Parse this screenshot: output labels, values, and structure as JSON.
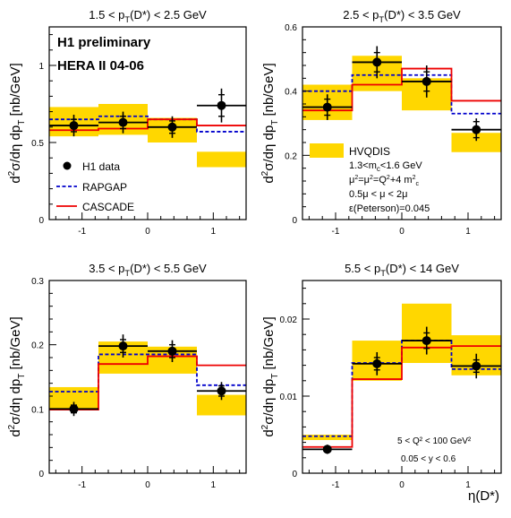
{
  "figure": {
    "colors": {
      "data": "#000000",
      "rapgap": "#0000cc",
      "cascade": "#ee0000",
      "hvqdis": "#ffd700"
    }
  },
  "chart_data": [
    {
      "type": "step-histogram-with-errorbars",
      "title": "1.5 < p_T(D*) < 2.5 GeV",
      "title_parts": [
        "1.5 < p",
        "T",
        "(D*) < 2.5 GeV"
      ],
      "ylabel": "d²σ/dη dp_T [nb/GeV]",
      "ylabel_parts": [
        "d",
        "2",
        "σ/dη dp",
        "T",
        " [nb/GeV]"
      ],
      "xlabel": "",
      "xlim": [
        -1.5,
        1.5
      ],
      "ylim": [
        0,
        1.25
      ],
      "xticks": [
        -1,
        0,
        1
      ],
      "xticklabels": [
        "-1",
        "0",
        "1"
      ],
      "yticks": [
        0,
        0.5,
        1
      ],
      "yticklabels": [
        "0",
        "0.5",
        "1"
      ],
      "bins": [
        -1.5,
        -0.75,
        0,
        0.75,
        1.5
      ],
      "data": {
        "x": [
          -1.125,
          -0.375,
          0.375,
          1.125
        ],
        "y": [
          0.61,
          0.63,
          0.6,
          0.74
        ],
        "err_stat": [
          0.04,
          0.04,
          0.04,
          0.07
        ],
        "err_tot": [
          0.07,
          0.07,
          0.07,
          0.11
        ],
        "xerr": [
          0.375,
          0.375,
          0.375,
          0.375
        ]
      },
      "rapgap": [
        0.65,
        0.67,
        0.65,
        0.57
      ],
      "cascade": [
        0.58,
        0.59,
        0.65,
        0.61
      ],
      "hvqdis_band": [
        [
          0.54,
          0.73
        ],
        [
          0.55,
          0.75
        ],
        [
          0.5,
          0.66
        ],
        [
          0.34,
          0.44
        ]
      ],
      "text_lines": [
        {
          "key": "header1",
          "text": "H1 preliminary"
        },
        {
          "key": "header2",
          "text": "HERA II 04-06"
        }
      ],
      "legend": [
        {
          "key": "data",
          "label": "H1 data"
        },
        {
          "key": "rapgap",
          "label": "RAPGAP"
        },
        {
          "key": "cascade",
          "label": "CASCADE"
        }
      ]
    },
    {
      "type": "step-histogram-with-errorbars",
      "title": "2.5 < p_T(D*) < 3.5 GeV",
      "title_parts": [
        "2.5 < p",
        "T",
        "(D*) < 3.5 GeV"
      ],
      "ylabel": "d²σ/dη dp_T [nb/GeV]",
      "ylabel_parts": [
        "d",
        "2",
        "σ/dη dp",
        "T",
        " [nb/GeV]"
      ],
      "xlabel": "",
      "xlim": [
        -1.5,
        1.5
      ],
      "ylim": [
        0,
        0.6
      ],
      "xticks": [
        -1,
        0,
        1
      ],
      "xticklabels": [
        "-1",
        "0",
        "1"
      ],
      "yticks": [
        0,
        0.2,
        0.4,
        0.6
      ],
      "yticklabels": [
        "0",
        "0.2",
        "0.4",
        "0.6"
      ],
      "bins": [
        -1.5,
        -0.75,
        0,
        0.75,
        1.5
      ],
      "data": {
        "x": [
          -1.125,
          -0.375,
          0.375,
          1.125
        ],
        "y": [
          0.35,
          0.49,
          0.43,
          0.28
        ],
        "err_stat": [
          0.025,
          0.03,
          0.03,
          0.025
        ],
        "err_tot": [
          0.04,
          0.05,
          0.05,
          0.035
        ],
        "xerr": [
          0.375,
          0.375,
          0.375,
          0.375
        ]
      },
      "rapgap": [
        0.4,
        0.45,
        0.45,
        0.33
      ],
      "cascade": [
        0.34,
        0.42,
        0.47,
        0.37
      ],
      "hvqdis_band": [
        [
          0.31,
          0.42
        ],
        [
          0.4,
          0.51
        ],
        [
          0.34,
          0.44
        ],
        [
          0.21,
          0.27
        ]
      ],
      "text_lines": [
        {
          "key": "line1",
          "text": "1.3<m_c<1.6 GeV"
        },
        {
          "key": "line2",
          "text": "μ²=μ²=Q²+4 m²_c"
        },
        {
          "key": "line3",
          "text": "0.5μ < μ < 2μ"
        },
        {
          "key": "line4",
          "text": "ε(Peterson)=0.045"
        }
      ],
      "legend": [
        {
          "key": "hvqdis",
          "label": "HVQDIS"
        }
      ]
    },
    {
      "type": "step-histogram-with-errorbars",
      "title": "3.5 < p_T(D*) < 5.5 GeV",
      "title_parts": [
        "3.5 < p",
        "T",
        "(D*) < 5.5 GeV"
      ],
      "ylabel": "d²σ/dη dp_T [nb/GeV]",
      "ylabel_parts": [
        "d",
        "2",
        "σ/dη dp",
        "T",
        " [nb/GeV]"
      ],
      "xlabel": "",
      "xlim": [
        -1.5,
        1.5
      ],
      "ylim": [
        0,
        0.3
      ],
      "xticks": [
        -1,
        0,
        1
      ],
      "xticklabels": [
        "-1",
        "0",
        "1"
      ],
      "yticks": [
        0,
        0.1,
        0.2,
        0.3
      ],
      "yticklabels": [
        "0",
        "0.1",
        "0.2",
        "0.3"
      ],
      "bins": [
        -1.5,
        -0.75,
        0,
        0.75,
        1.5
      ],
      "data": {
        "x": [
          -1.125,
          -0.375,
          0.375,
          1.125
        ],
        "y": [
          0.1,
          0.198,
          0.19,
          0.128
        ],
        "err_stat": [
          0.006,
          0.01,
          0.01,
          0.008
        ],
        "err_tot": [
          0.011,
          0.018,
          0.017,
          0.014
        ],
        "xerr": [
          0.375,
          0.375,
          0.375,
          0.375
        ]
      },
      "rapgap": [
        0.127,
        0.185,
        0.185,
        0.137
      ],
      "cascade": [
        0.099,
        0.17,
        0.182,
        0.168
      ],
      "hvqdis_band": [
        [
          0.1,
          0.134
        ],
        [
          0.155,
          0.205
        ],
        [
          0.155,
          0.197
        ],
        [
          0.09,
          0.122
        ]
      ],
      "text_lines": [],
      "legend": []
    },
    {
      "type": "step-histogram-with-errorbars",
      "title": "5.5 < p_T(D*) < 14 GeV",
      "title_parts": [
        "5.5 < p",
        "T",
        "(D*) < 14 GeV"
      ],
      "ylabel": "d²σ/dη dp_T [nb/GeV]",
      "ylabel_parts": [
        "d",
        "2",
        "σ/dη dp",
        "T",
        " [nb/GeV]"
      ],
      "xlabel": "η(D*)",
      "xlim": [
        -1.5,
        1.5
      ],
      "ylim": [
        0,
        0.025
      ],
      "xticks": [
        -1,
        0,
        1
      ],
      "xticklabels": [
        "-1",
        "0",
        "1"
      ],
      "yticks": [
        0,
        0.01,
        0.02
      ],
      "yticklabels": [
        "0",
        "0.01",
        "0.02"
      ],
      "bins": [
        -1.5,
        -0.75,
        0,
        0.75,
        1.5
      ],
      "data": {
        "x": [
          -1.125,
          -0.375,
          0.375,
          1.125
        ],
        "y": [
          0.0031,
          0.0142,
          0.0172,
          0.0139
        ],
        "err_stat": [
          0.0003,
          0.0008,
          0.001,
          0.0008
        ],
        "err_tot": [
          0.0006,
          0.0015,
          0.0018,
          0.0016
        ],
        "xerr": [
          0.375,
          0.375,
          0.375,
          0.375
        ]
      },
      "rapgap": [
        0.0048,
        0.0143,
        0.0172,
        0.0135
      ],
      "cascade": [
        0.0034,
        0.0122,
        0.0163,
        0.0165
      ],
      "hvqdis_band": [
        [
          0.0043,
          0.005
        ],
        [
          0.012,
          0.0172
        ],
        [
          0.0143,
          0.022
        ],
        [
          0.0127,
          0.0179
        ]
      ],
      "text_lines": [
        {
          "key": "cut1",
          "text": "5 < Q² < 100 GeV²"
        },
        {
          "key": "cut2",
          "text": "0.05 < y < 0.6"
        }
      ],
      "legend": []
    }
  ]
}
